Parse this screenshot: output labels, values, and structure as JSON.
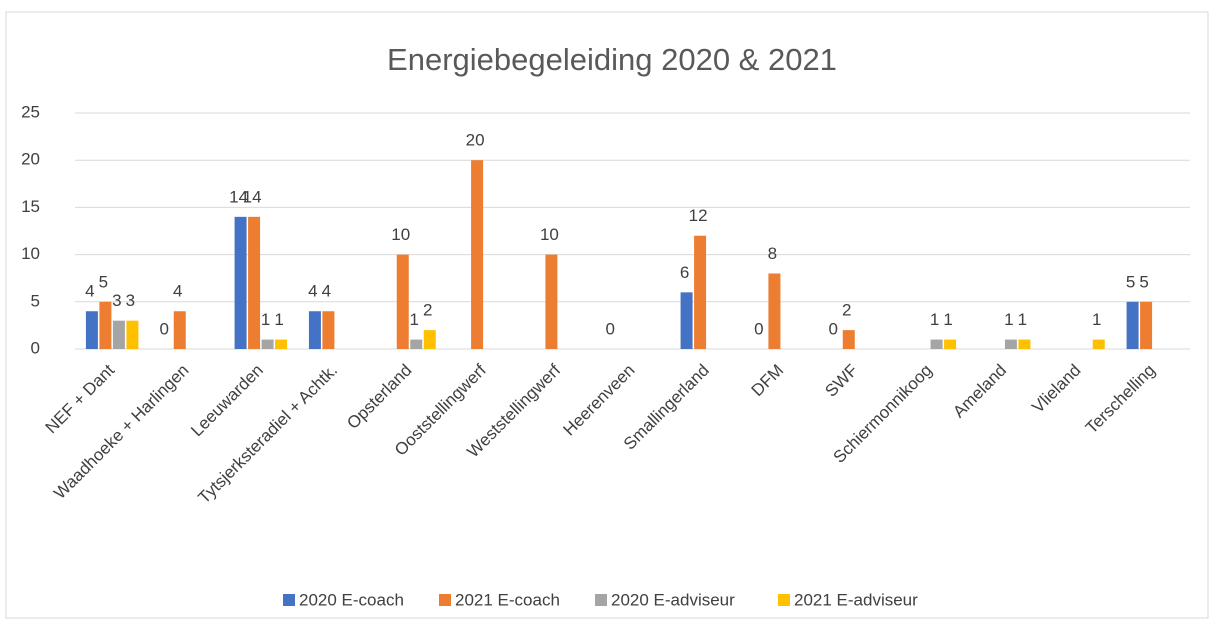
{
  "chart_data": {
    "type": "bar",
    "title": "Energiebegeleiding 2020 & 2021",
    "categories": [
      "NEF + Dant",
      "Waadhoeke + Harlingen",
      "Leeuwarden",
      "Tytsjerksteradiel + Achtk.",
      "Opsterland",
      "Ooststellingwerf",
      "Weststellingwerf",
      "Heerenveen",
      "Smallingerland",
      "DFM",
      "SWF",
      "Schiermonnikoog",
      "Ameland",
      "Vlieland",
      "Terschelling"
    ],
    "series": [
      {
        "name": "2020 E-coach",
        "color": "#4472c4",
        "values": [
          4,
          0,
          14,
          4,
          null,
          null,
          null,
          0,
          6,
          0,
          0,
          null,
          null,
          null,
          5
        ]
      },
      {
        "name": "2021 E-coach",
        "color": "#ed7d31",
        "values": [
          5,
          4,
          14,
          4,
          10,
          20,
          10,
          null,
          12,
          8,
          2,
          null,
          null,
          null,
          5
        ]
      },
      {
        "name": "2020 E-adviseur",
        "color": "#a5a5a5",
        "values": [
          3,
          null,
          1,
          null,
          1,
          null,
          null,
          null,
          null,
          null,
          null,
          1,
          1,
          null,
          null
        ]
      },
      {
        "name": "2021 E-adviseur",
        "color": "#ffc000",
        "values": [
          3,
          null,
          1,
          null,
          2,
          null,
          null,
          null,
          null,
          null,
          null,
          1,
          1,
          1,
          null
        ]
      }
    ],
    "ylim": [
      0,
      25
    ],
    "yticks": [
      0,
      5,
      10,
      15,
      20,
      25
    ],
    "grid": true,
    "legend": "bottom"
  }
}
